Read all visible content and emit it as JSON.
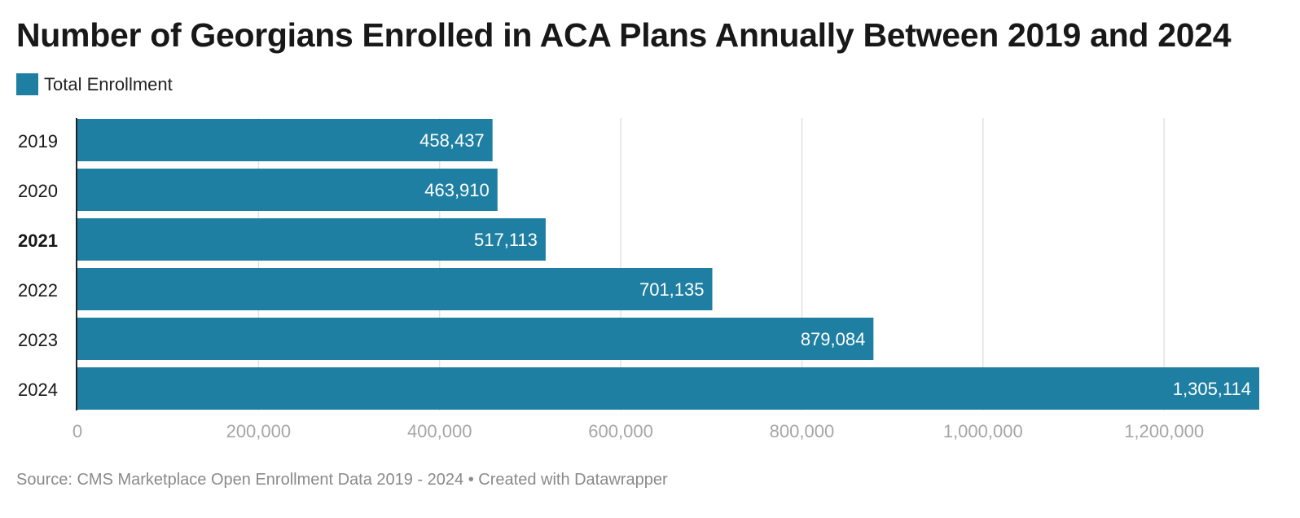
{
  "title": "Number of Georgians Enrolled in ACA Plans Annually Between 2019 and 2024",
  "footer": "Source: CMS Marketplace Open Enrollment Data 2019 - 2024 • Created with Datawrapper",
  "colors": {
    "bar": "#1f7fa2",
    "grid": "#e2e2e2",
    "tick": "#a6a6a6",
    "label_text": "#ffffff"
  },
  "chart_data": {
    "type": "bar",
    "orientation": "horizontal",
    "categories": [
      "2019",
      "2020",
      "2021",
      "2022",
      "2023",
      "2024"
    ],
    "highlighted_category": "2021",
    "series": [
      {
        "name": "Total Enrollment",
        "values": [
          458437,
          463910,
          517113,
          701135,
          879084,
          1305114
        ]
      }
    ],
    "data_labels": [
      "458,437",
      "463,910",
      "517,113",
      "701,135",
      "879,084",
      "1,305,114"
    ],
    "x_ticks": [
      0,
      200000,
      400000,
      600000,
      800000,
      1000000,
      1200000
    ],
    "x_tick_labels": [
      "0",
      "200,000",
      "400,000",
      "600,000",
      "800,000",
      "1,000,000",
      "1,200,000"
    ],
    "xlim": [
      0,
      1305114
    ],
    "grid": true,
    "legend_position": "top-left"
  }
}
